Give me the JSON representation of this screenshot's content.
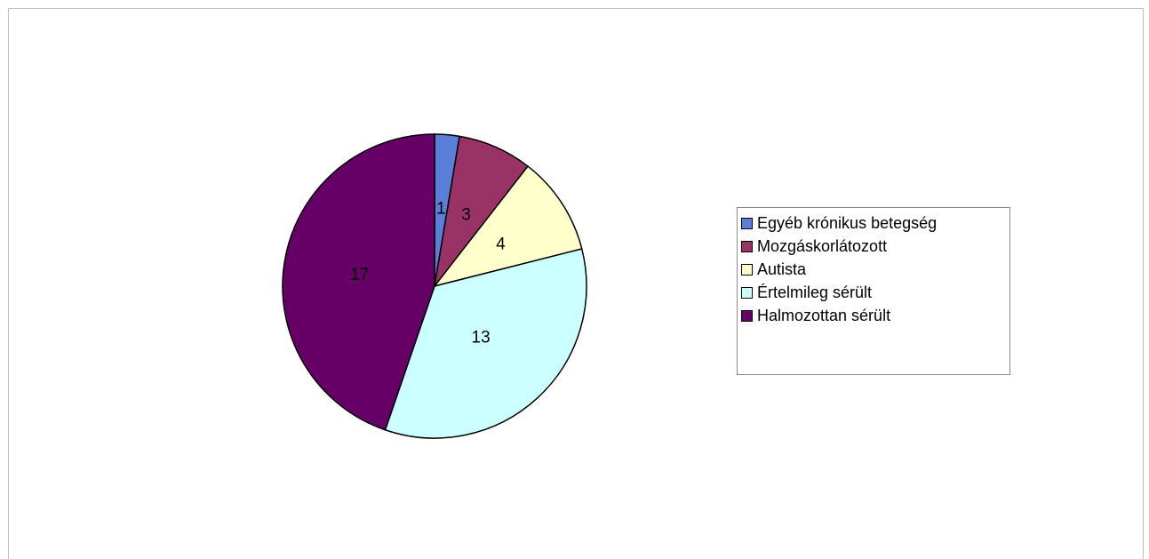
{
  "chart_data": {
    "type": "pie",
    "categories": [
      "Egyéb krónikus betegség",
      "Mozgáskorlátozott",
      "Autista",
      "Értelmileg sérült",
      "Halmozottan sérült"
    ],
    "values": [
      1,
      3,
      4,
      13,
      17
    ],
    "colors": [
      "#5b7fd9",
      "#993366",
      "#ffffcc",
      "#ccffff",
      "#660066"
    ],
    "data_labels": [
      "1",
      "3",
      "4",
      "13",
      "17"
    ],
    "legend_placement": "right",
    "start_angle": "12 o'clock",
    "direction": "clockwise"
  },
  "legend": {
    "items": [
      {
        "label": "Egyéb krónikus betegség",
        "color": "#5b7fd9"
      },
      {
        "label": "Mozgáskorlátozott",
        "color": "#993366"
      },
      {
        "label": "Autista",
        "color": "#ffffcc"
      },
      {
        "label": "Értelmileg sérült",
        "color": "#ccffff"
      },
      {
        "label": "Halmozottan sérült",
        "color": "#660066"
      }
    ]
  }
}
